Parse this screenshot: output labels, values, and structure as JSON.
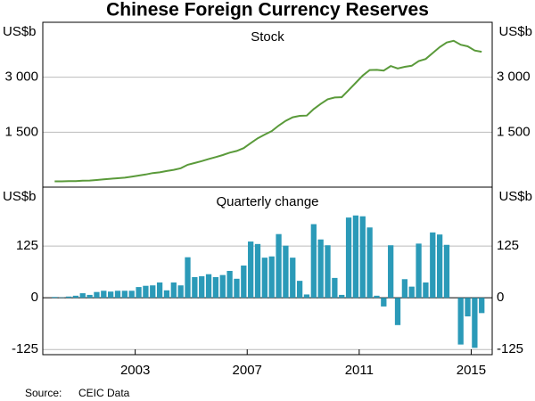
{
  "title": "Chinese Foreign Currency Reserves",
  "source_label": "Source:",
  "source": "CEIC Data",
  "chart_data": [
    {
      "type": "line",
      "title": "Stock",
      "ylabel": "US$b",
      "color": "#5a9a3a",
      "xlim": [
        1999.7,
        2015.75
      ],
      "ylim": [
        0,
        4500
      ],
      "yticks": [
        {
          "value": 1500,
          "label": "1 500"
        },
        {
          "value": 3000,
          "label": "3 000"
        }
      ],
      "grid": true,
      "x": [
        2000.125,
        2000.375,
        2000.625,
        2000.875,
        2001.125,
        2001.375,
        2001.625,
        2001.875,
        2002.125,
        2002.375,
        2002.625,
        2002.875,
        2003.125,
        2003.375,
        2003.625,
        2003.875,
        2004.125,
        2004.375,
        2004.625,
        2004.875,
        2005.125,
        2005.375,
        2005.625,
        2005.875,
        2006.125,
        2006.375,
        2006.625,
        2006.875,
        2007.125,
        2007.375,
        2007.625,
        2007.875,
        2008.125,
        2008.375,
        2008.625,
        2008.875,
        2009.125,
        2009.375,
        2009.625,
        2009.875,
        2010.125,
        2010.375,
        2010.625,
        2010.875,
        2011.125,
        2011.375,
        2011.625,
        2011.875,
        2012.125,
        2012.375,
        2012.625,
        2012.875,
        2013.125,
        2013.375,
        2013.625,
        2013.875,
        2014.125,
        2014.375,
        2014.625,
        2014.875,
        2015.125,
        2015.375
      ],
      "values": [
        158,
        159,
        163,
        166,
        175,
        180,
        195,
        212,
        228,
        243,
        258,
        286,
        316,
        346,
        384,
        403,
        440,
        471,
        515,
        610,
        659,
        711,
        769,
        819,
        875,
        941,
        988,
        1066,
        1202,
        1332,
        1434,
        1528,
        1682,
        1809,
        1906,
        1946,
        1954,
        2132,
        2273,
        2399,
        2447,
        2454,
        2648,
        2847,
        3045,
        3197,
        3202,
        3181,
        3305,
        3240,
        3285,
        3312,
        3443,
        3497,
        3662,
        3821,
        3948,
        3993,
        3888,
        3843,
        3730,
        3694
      ]
    },
    {
      "type": "bar",
      "title": "Quarterly change",
      "ylabel": "US$b",
      "color": "#2b9ab8",
      "xlim": [
        1999.7,
        2015.75
      ],
      "ylim": [
        -137.5,
        267.5
      ],
      "yticks": [
        -125,
        0,
        125
      ],
      "grid": true,
      "xticks": [
        2003,
        2007,
        2011,
        2015
      ],
      "x": [
        2000.125,
        2000.375,
        2000.625,
        2000.875,
        2001.125,
        2001.375,
        2001.625,
        2001.875,
        2002.125,
        2002.375,
        2002.625,
        2002.875,
        2003.125,
        2003.375,
        2003.625,
        2003.875,
        2004.125,
        2004.375,
        2004.625,
        2004.875,
        2005.125,
        2005.375,
        2005.625,
        2005.875,
        2006.125,
        2006.375,
        2006.625,
        2006.875,
        2007.125,
        2007.375,
        2007.625,
        2007.875,
        2008.125,
        2008.375,
        2008.625,
        2008.875,
        2009.125,
        2009.375,
        2009.625,
        2009.875,
        2010.125,
        2010.375,
        2010.625,
        2010.875,
        2011.125,
        2011.375,
        2011.625,
        2011.875,
        2012.125,
        2012.375,
        2012.625,
        2012.875,
        2013.125,
        2013.375,
        2013.625,
        2013.875,
        2014.125,
        2014.375,
        2014.625,
        2014.875,
        2015.125,
        2015.375
      ],
      "values": [
        2,
        1,
        3,
        5,
        11,
        7,
        14,
        17,
        15,
        17,
        17,
        17,
        26,
        29,
        30,
        37,
        18,
        37,
        30,
        98,
        50,
        52,
        57,
        50,
        55,
        65,
        46,
        78,
        136,
        130,
        97,
        100,
        154,
        126,
        97,
        41,
        8,
        178,
        141,
        127,
        48,
        7,
        194,
        199,
        197,
        170,
        5,
        -21,
        127,
        -66,
        45,
        27,
        131,
        37,
        158,
        153,
        128,
        0,
        -113,
        -45,
        -121,
        -37
      ]
    }
  ]
}
